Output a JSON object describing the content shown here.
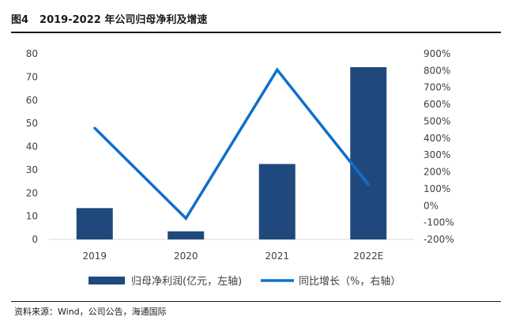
{
  "figure": {
    "number": "图4",
    "title": "2019-2022 年公司归母净利及增速",
    "source": "资料来源：Wind，公司公告，海通国际"
  },
  "colors": {
    "bar": "#1F497D",
    "line": "#0F6FCB",
    "axis": "#D9D9D9",
    "text": "#404040"
  },
  "chart_data": {
    "type": "bar",
    "title": "",
    "categories": [
      "2019",
      "2020",
      "2021",
      "2022E"
    ],
    "series": [
      {
        "name": "归母净利润(亿元，左轴)",
        "type": "bar",
        "axis": "left",
        "values": [
          13.5,
          3.5,
          32.5,
          74.2
        ]
      },
      {
        "name": "同比增长（%，右轴）",
        "type": "line",
        "axis": "right",
        "values": [
          460,
          -75,
          805,
          125
        ]
      }
    ],
    "y_left": {
      "min": 0,
      "max": 80,
      "step": 10,
      "tick_labels": [
        "0",
        "10",
        "20",
        "30",
        "40",
        "50",
        "60",
        "70",
        "80"
      ]
    },
    "y_right": {
      "min": -200,
      "max": 900,
      "step": 100,
      "tick_labels": [
        "-200%",
        "-100%",
        "0%",
        "100%",
        "200%",
        "300%",
        "400%",
        "500%",
        "600%",
        "700%",
        "800%",
        "900%"
      ]
    },
    "grid": false,
    "legend_position": "bottom"
  }
}
